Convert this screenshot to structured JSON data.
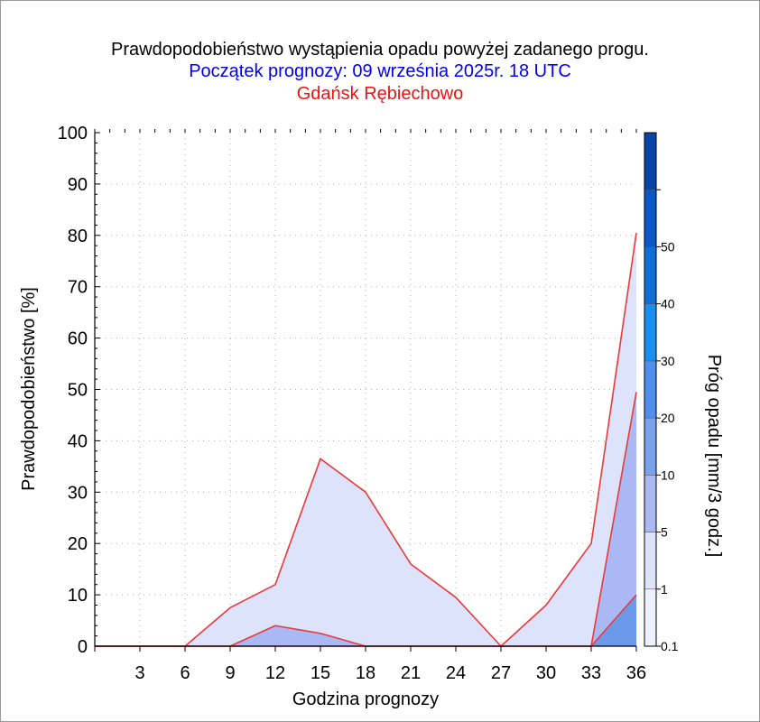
{
  "titles": {
    "line1": "Prawdopodobieństwo wystąpienia opadu powyżej zadanego progu.",
    "line2": "Początek prognozy: 09 września 2025r. 18 UTC",
    "line3": "Gdańsk Rębiechowo"
  },
  "colors": {
    "title": "#000000",
    "subtitle": "#0000ee",
    "station": "#ee1111",
    "series_outline": "#e83a3a",
    "gridline": "#b0b0b0"
  },
  "chart_data": {
    "type": "area",
    "title": "Prawdopodobieństwo wystąpienia opadu powyżej zadanego progu.",
    "xlabel": "Godzina prognozy",
    "ylabel": "Prawdopodobieństwo [%]",
    "xlim": [
      0,
      36
    ],
    "ylim": [
      0,
      100
    ],
    "grid": true,
    "x": [
      0,
      3,
      6,
      9,
      12,
      15,
      18,
      21,
      24,
      27,
      30,
      33,
      36
    ],
    "x_ticks": [
      "3",
      "6",
      "9",
      "12",
      "15",
      "18",
      "21",
      "24",
      "27",
      "30",
      "33",
      "36"
    ],
    "y_ticks": [
      "0",
      "10",
      "20",
      "30",
      "40",
      "50",
      "60",
      "70",
      "80",
      "90",
      "100"
    ],
    "series": [
      {
        "threshold": 0.1,
        "color": "#dde3fb",
        "values": [
          0,
          0,
          0,
          7.5,
          12,
          36.5,
          30,
          16,
          9.5,
          0,
          8,
          20,
          80.5
        ]
      },
      {
        "threshold": 1,
        "color": "#aab9f3",
        "values": [
          0,
          0,
          0,
          0,
          4,
          2.5,
          0,
          0,
          0,
          0,
          0,
          0,
          49.5
        ]
      },
      {
        "threshold": 5,
        "color": "#6d99ea",
        "values": [
          0,
          0,
          0,
          0,
          0,
          0,
          0,
          0,
          0,
          0,
          0,
          0,
          10
        ]
      }
    ],
    "colorbar": {
      "label": "Próg opadu [mm/3 godz.]",
      "tick_labels": [
        "0.1",
        "1",
        "5",
        "10",
        "20",
        "30",
        "40",
        "50"
      ],
      "bands": [
        {
          "from": "0.1",
          "color": "#eef1fd"
        },
        {
          "from": "1",
          "color": "#dde3fb"
        },
        {
          "from": "5",
          "color": "#aab9f3"
        },
        {
          "from": "10",
          "color": "#7aa2ec"
        },
        {
          "from": "20",
          "color": "#4f8fee"
        },
        {
          "from": "30",
          "color": "#1a8ff2"
        },
        {
          "from": "40",
          "color": "#0f6fd4"
        },
        {
          "from": "50",
          "color": "#0a58c7"
        },
        {
          "from": "",
          "color": "#0845a8"
        }
      ]
    }
  }
}
